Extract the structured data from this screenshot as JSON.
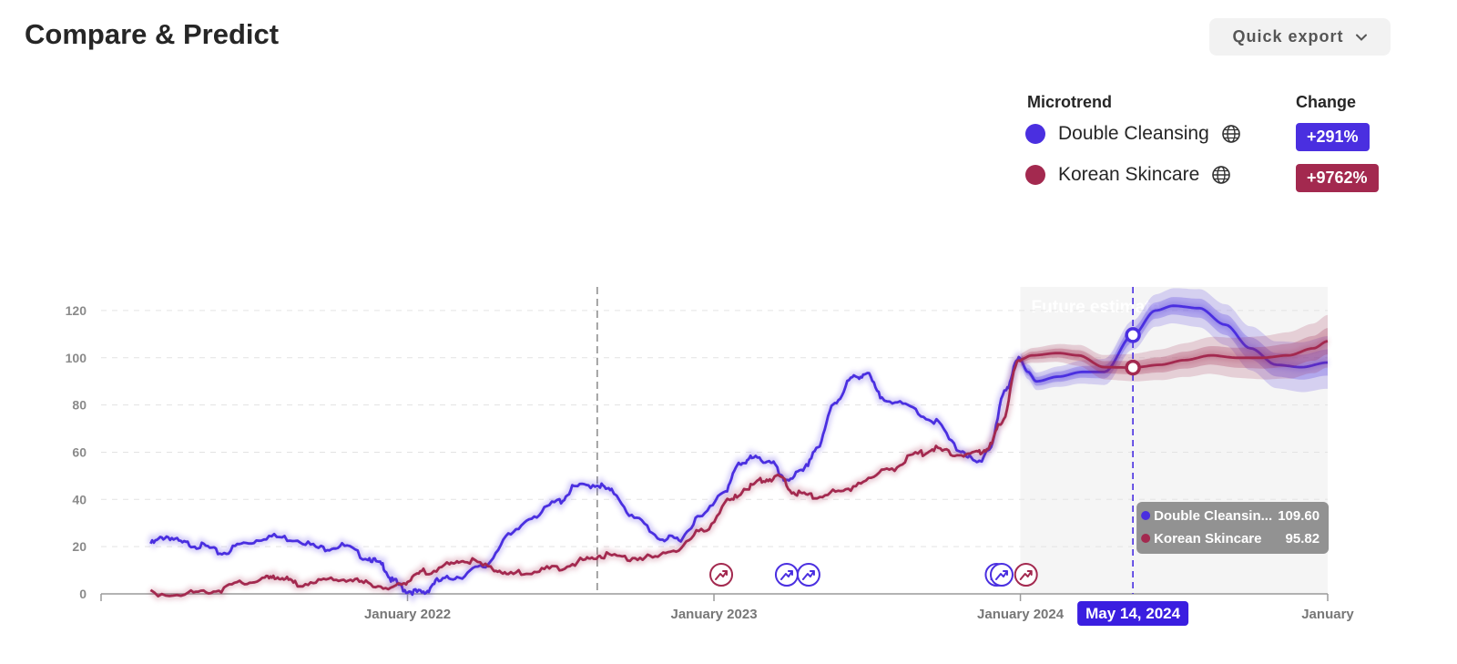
{
  "header": {
    "title": "Compare & Predict",
    "export_label": "Quick export"
  },
  "legend": {
    "microtrend_header": "Microtrend",
    "change_header": "Change",
    "items": [
      {
        "name": "Double Cleansing",
        "change": "+291%",
        "color": "#4a2fe0",
        "icon": "globe-icon"
      },
      {
        "name": "Korean Skincare",
        "change": "+9762%",
        "color": "#a3294f",
        "icon": "globe-icon"
      }
    ]
  },
  "chart_data": {
    "type": "line",
    "y_ticks": [
      0,
      20,
      40,
      60,
      80,
      100,
      120
    ],
    "ylim": [
      0,
      130
    ],
    "x_ticks": [
      {
        "label": "January 2022",
        "date": "2022-01-01"
      },
      {
        "label": "January 2023",
        "date": "2023-01-01"
      },
      {
        "label": "January 2024",
        "date": "2024-01-01"
      },
      {
        "label": "January",
        "date": "2025-01-01"
      }
    ],
    "xlim": [
      "2021-01-01",
      "2025-01-01"
    ],
    "grid": true,
    "future_region": {
      "label": "Future estimate",
      "start": "2024-01-01",
      "end": "2025-01-01"
    },
    "event_marker_date": "2022-08-15",
    "hover": {
      "date_label": "May 14, 2024",
      "date": "2024-05-14",
      "rows": [
        {
          "name": "Double Cleansin...",
          "value": "109.60"
        },
        {
          "name": "Korean Skincare",
          "value": "95.82"
        }
      ]
    },
    "series": [
      {
        "name": "Double Cleansing",
        "color": "#4a2fe0",
        "points": [
          [
            "2021-03-01",
            22
          ],
          [
            "2021-03-20",
            25
          ],
          [
            "2021-04-10",
            22
          ],
          [
            "2021-05-01",
            21
          ],
          [
            "2021-05-25",
            18
          ],
          [
            "2021-06-20",
            22
          ],
          [
            "2021-07-20",
            25
          ],
          [
            "2021-08-20",
            24
          ],
          [
            "2021-09-20",
            20
          ],
          [
            "2021-10-15",
            21
          ],
          [
            "2021-11-15",
            16
          ],
          [
            "2021-12-01",
            13
          ],
          [
            "2021-12-15",
            6
          ],
          [
            "2022-01-01",
            2
          ],
          [
            "2022-01-20",
            1
          ],
          [
            "2022-02-05",
            6
          ],
          [
            "2022-03-01",
            8
          ],
          [
            "2022-04-01",
            12
          ],
          [
            "2022-05-01",
            25
          ],
          [
            "2022-06-01",
            34
          ],
          [
            "2022-07-01",
            40
          ],
          [
            "2022-07-20",
            46
          ],
          [
            "2022-08-15",
            47
          ],
          [
            "2022-09-01",
            44
          ],
          [
            "2022-10-01",
            32
          ],
          [
            "2022-11-01",
            24
          ],
          [
            "2022-11-20",
            24
          ],
          [
            "2022-12-15",
            33
          ],
          [
            "2023-01-15",
            45
          ],
          [
            "2023-02-01",
            56
          ],
          [
            "2023-02-15",
            58
          ],
          [
            "2023-03-10",
            57
          ],
          [
            "2023-03-25",
            49
          ],
          [
            "2023-04-15",
            52
          ],
          [
            "2023-05-05",
            63
          ],
          [
            "2023-05-25",
            82
          ],
          [
            "2023-06-15",
            92
          ],
          [
            "2023-07-01",
            94
          ],
          [
            "2023-07-20",
            84
          ],
          [
            "2023-08-20",
            80
          ],
          [
            "2023-09-20",
            74
          ],
          [
            "2023-10-20",
            62
          ],
          [
            "2023-11-10",
            56
          ],
          [
            "2023-11-25",
            62
          ],
          [
            "2023-12-15",
            88
          ],
          [
            "2023-12-30",
            100
          ],
          [
            "2024-01-10",
            94
          ],
          [
            "2024-01-20",
            90
          ],
          [
            "2024-02-15",
            92
          ],
          [
            "2024-03-15",
            94
          ],
          [
            "2024-04-10",
            94
          ],
          [
            "2024-05-14",
            109.6
          ],
          [
            "2024-06-10",
            120
          ],
          [
            "2024-07-01",
            122
          ],
          [
            "2024-08-01",
            121
          ],
          [
            "2024-09-01",
            114
          ],
          [
            "2024-10-01",
            104
          ],
          [
            "2024-11-01",
            97
          ],
          [
            "2024-12-01",
            96
          ],
          [
            "2025-01-01",
            98
          ]
        ]
      },
      {
        "name": "Korean Skincare",
        "color": "#a3294f",
        "points": [
          [
            "2021-03-01",
            1
          ],
          [
            "2021-04-15",
            1
          ],
          [
            "2021-05-15",
            2
          ],
          [
            "2021-06-15",
            5
          ],
          [
            "2021-07-15",
            7
          ],
          [
            "2021-08-01",
            8
          ],
          [
            "2021-08-20",
            5
          ],
          [
            "2021-09-20",
            6
          ],
          [
            "2021-10-20",
            7
          ],
          [
            "2021-11-15",
            5
          ],
          [
            "2021-12-15",
            3
          ],
          [
            "2022-01-01",
            6
          ],
          [
            "2022-01-20",
            10
          ],
          [
            "2022-02-20",
            13
          ],
          [
            "2022-03-10",
            15
          ],
          [
            "2022-04-10",
            12
          ],
          [
            "2022-05-01",
            9
          ],
          [
            "2022-06-01",
            10
          ],
          [
            "2022-07-01",
            12
          ],
          [
            "2022-08-01",
            15
          ],
          [
            "2022-08-20",
            17
          ],
          [
            "2022-09-20",
            16
          ],
          [
            "2022-10-20",
            16
          ],
          [
            "2022-11-20",
            20
          ],
          [
            "2022-12-20",
            28
          ],
          [
            "2023-01-20",
            40
          ],
          [
            "2023-02-10",
            46
          ],
          [
            "2023-03-01",
            49
          ],
          [
            "2023-03-20",
            50
          ],
          [
            "2023-04-10",
            43
          ],
          [
            "2023-05-01",
            42
          ],
          [
            "2023-06-01",
            44
          ],
          [
            "2023-07-01",
            49
          ],
          [
            "2023-08-01",
            54
          ],
          [
            "2023-09-01",
            60
          ],
          [
            "2023-09-20",
            62
          ],
          [
            "2023-10-15",
            60
          ],
          [
            "2023-11-10",
            60
          ],
          [
            "2023-11-25",
            63
          ],
          [
            "2023-12-10",
            74
          ],
          [
            "2023-12-30",
            99
          ],
          [
            "2024-01-15",
            101
          ],
          [
            "2024-02-15",
            102
          ],
          [
            "2024-03-10",
            101
          ],
          [
            "2024-04-10",
            96
          ],
          [
            "2024-05-14",
            95.82
          ],
          [
            "2024-06-15",
            97
          ],
          [
            "2024-07-15",
            99
          ],
          [
            "2024-08-15",
            101
          ],
          [
            "2024-09-15",
            100
          ],
          [
            "2024-10-15",
            100
          ],
          [
            "2024-11-15",
            101
          ],
          [
            "2024-12-15",
            104
          ],
          [
            "2025-01-01",
            107
          ]
        ]
      }
    ],
    "event_icons": [
      {
        "series": "Korean Skincare",
        "date": "2023-01-01"
      },
      {
        "series": "Double Cleansing",
        "date": "2023-03-20"
      },
      {
        "series": "Double Cleansing",
        "date": "2023-04-15"
      },
      {
        "series": "Double Cleansing",
        "date": "2023-11-25"
      },
      {
        "series": "Double Cleansing",
        "date": "2023-12-01"
      },
      {
        "series": "Korean Skincare",
        "date": "2023-12-30"
      }
    ]
  }
}
